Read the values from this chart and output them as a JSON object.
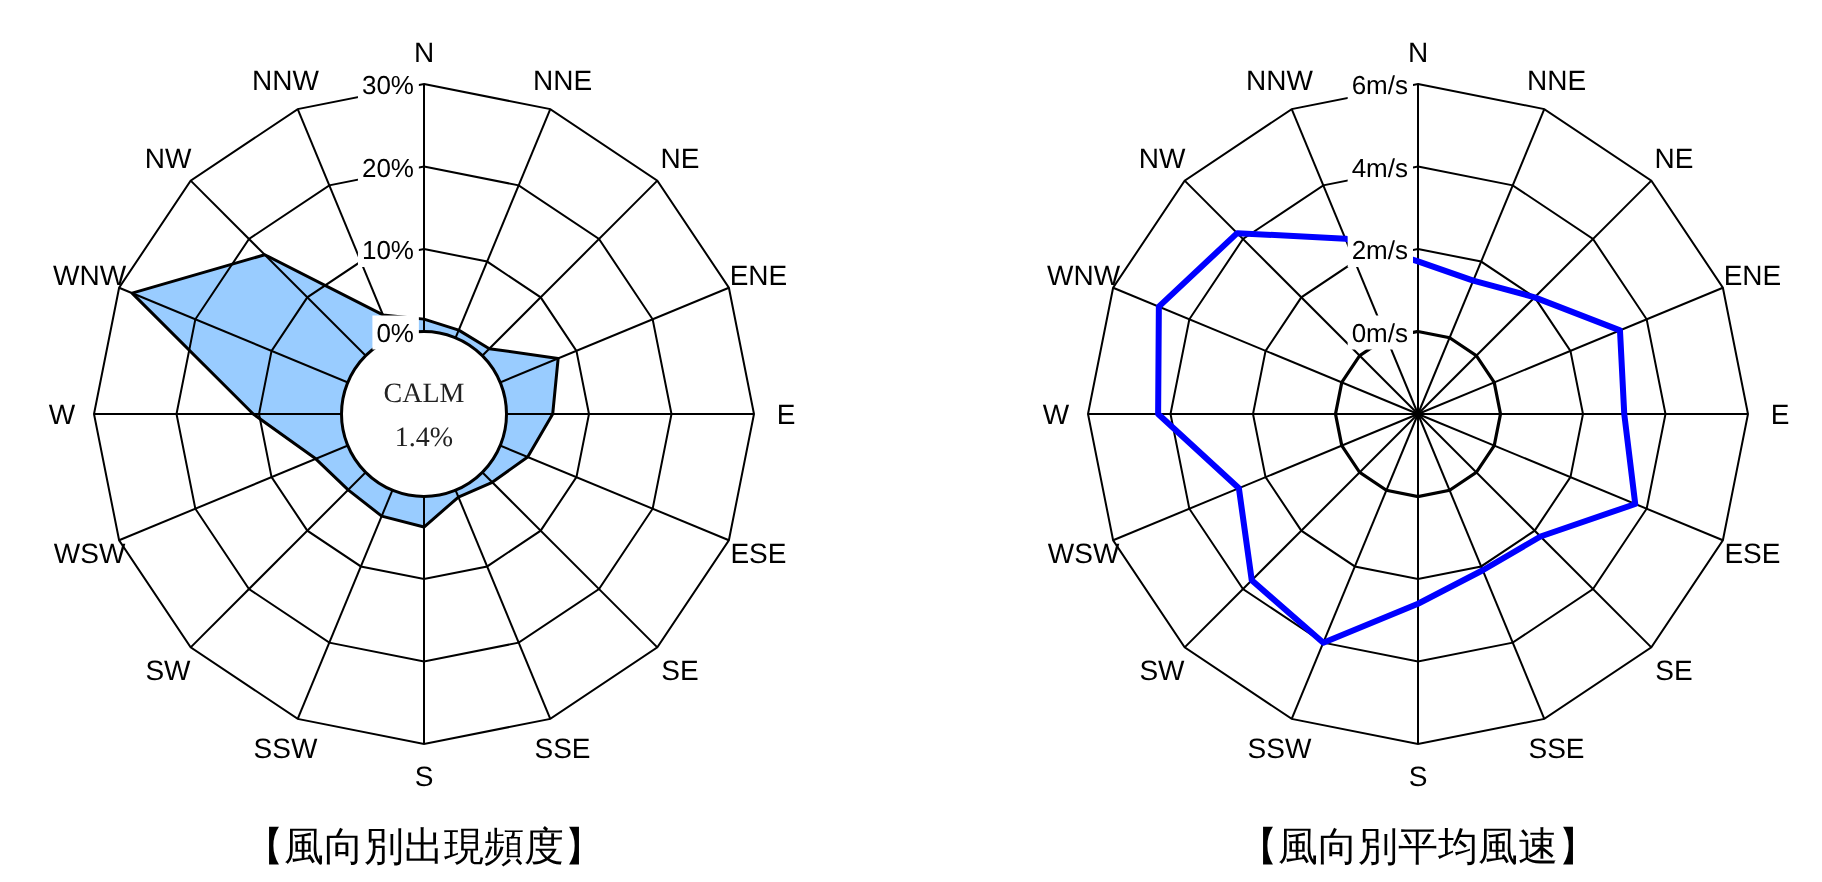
{
  "chart_data": [
    {
      "type": "radar",
      "title": "【風向別出現頻度】",
      "categories": [
        "N",
        "NNE",
        "NE",
        "ENE",
        "E",
        "ESE",
        "SE",
        "SSE",
        "S",
        "SSW",
        "SW",
        "WSW",
        "W",
        "WNW",
        "NW",
        "NNW"
      ],
      "ylim": [
        -10,
        30
      ],
      "yticks": [
        {
          "value": 0,
          "label": "0%"
        },
        {
          "value": 10,
          "label": "10%"
        },
        {
          "value": 20,
          "label": "20%"
        },
        {
          "value": 30,
          "label": "30%"
        }
      ],
      "annotations": [
        "CALM",
        "1.4%"
      ],
      "series": [
        {
          "color": "#99ccff",
          "values": [
            1.5,
            1,
            1.2,
            7.6,
            5.6,
            3.6,
            1.7,
            0.9,
            3.7,
            3.4,
            3,
            4.2,
            10.7,
            28.3,
            17.3,
            3
          ]
        }
      ]
    },
    {
      "type": "radar",
      "title": "【風向別平均風速】",
      "categories": [
        "N",
        "NNE",
        "NE",
        "ENE",
        "E",
        "ESE",
        "SE",
        "SSE",
        "S",
        "SSW",
        "SW",
        "WSW",
        "W",
        "WNW",
        "NW",
        "NNW"
      ],
      "ylim": [
        -2,
        6
      ],
      "yticks": [
        {
          "value": 0,
          "label": "0m/s"
        },
        {
          "value": 2,
          "label": "2m/s"
        },
        {
          "value": 4,
          "label": "4m/s"
        },
        {
          "value": 6,
          "label": "6m/s"
        }
      ],
      "series": [
        {
          "color": "#0000ff",
          "values": [
            1.7,
            1.5,
            2,
            3.3,
            3,
            3.7,
            2.2,
            2.1,
            2.6,
            4,
            3.7,
            2.7,
            4.3,
            4.8,
            4.2,
            2.6
          ]
        }
      ]
    }
  ]
}
